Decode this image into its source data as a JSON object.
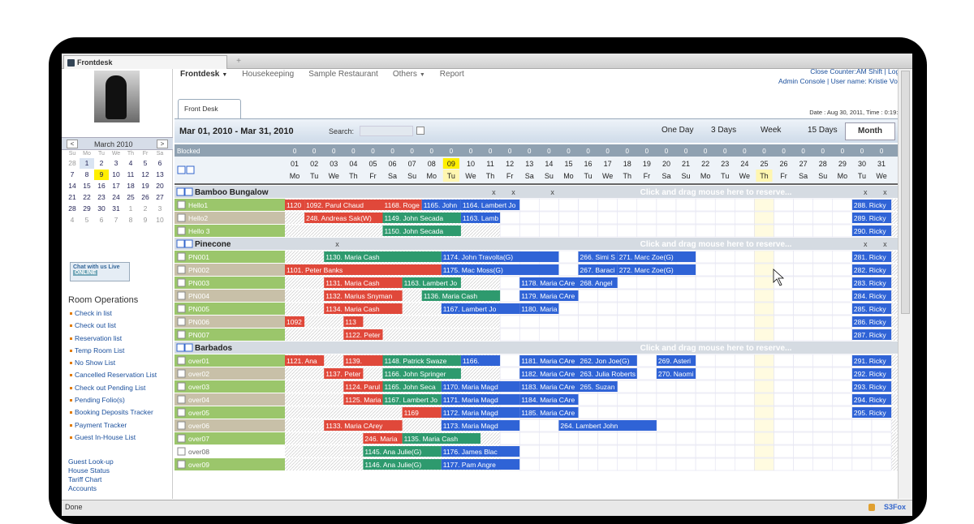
{
  "window": {
    "tab_title": "Frontdesk",
    "status": "Done",
    "status_right": "S3Fox"
  },
  "topnav": {
    "items": [
      "Frontdesk",
      "Housekeeping",
      "Sample Restaurant",
      "Others",
      "Report"
    ]
  },
  "topright": {
    "line1": "Close Counter:AM Shift | Logout",
    "line2": "Admin Console | User name: Kristie Vogue"
  },
  "front_tab": "Front Desk",
  "date_bar": "Date : Aug 30, 2011,   Time : 0:19:Hrs",
  "mini_calendar": {
    "month": "March 2010",
    "prev": "<",
    "next": ">",
    "weekdays": [
      "Su",
      "Mo",
      "Tu",
      "We",
      "Th",
      "Fr",
      "Sa"
    ],
    "weeks": [
      [
        "28",
        "1",
        "2",
        "3",
        "4",
        "5",
        "6"
      ],
      [
        "7",
        "8",
        "9",
        "10",
        "11",
        "12",
        "13"
      ],
      [
        "14",
        "15",
        "16",
        "17",
        "18",
        "19",
        "20"
      ],
      [
        "21",
        "22",
        "23",
        "24",
        "25",
        "26",
        "27"
      ],
      [
        "28",
        "29",
        "30",
        "31",
        "1",
        "2",
        "3"
      ],
      [
        "4",
        "5",
        "6",
        "7",
        "8",
        "9",
        "10"
      ]
    ],
    "outside": [
      [
        0,
        0
      ],
      [
        4,
        4
      ],
      [
        4,
        5
      ],
      [
        4,
        6
      ],
      [
        5,
        0
      ],
      [
        5,
        1
      ],
      [
        5,
        2
      ],
      [
        5,
        3
      ],
      [
        5,
        4
      ],
      [
        5,
        5
      ],
      [
        5,
        6
      ]
    ],
    "today": [
      1,
      2
    ],
    "selected": [
      0,
      1
    ]
  },
  "chat": {
    "line1": "Chat with us Live",
    "line2": "ONLINE"
  },
  "room_ops": {
    "heading": "Room Operations",
    "items": [
      "Check in list",
      "Check out list",
      "Reservation list",
      "Temp Room List",
      "No Show List",
      "Cancelled Reservation List",
      "Check out Pending List",
      "Pending Folio(s)",
      "Booking Deposits Tracker",
      "Payment Tracker",
      "Guest In-House List"
    ]
  },
  "extra_links": [
    "Guest Look-up",
    "House Status",
    "Tariff Chart",
    "Accounts"
  ],
  "header": {
    "range": "Mar 01, 2010 - Mar 31, 2010",
    "search_label": "Search:",
    "views": [
      "One Day",
      "3 Days",
      "Week",
      "15 Days",
      "Month"
    ],
    "active_view": "Month"
  },
  "calendar": {
    "blocked_label": "Blocked",
    "blocked_value": "0",
    "highlight_day": 8,
    "yellow_cols": [
      8,
      24
    ],
    "days": [
      "01",
      "02",
      "03",
      "04",
      "05",
      "06",
      "07",
      "08",
      "09",
      "10",
      "11",
      "12",
      "13",
      "14",
      "15",
      "16",
      "17",
      "18",
      "19",
      "20",
      "21",
      "22",
      "23",
      "24",
      "25",
      "26",
      "27",
      "28",
      "29",
      "30",
      "31"
    ],
    "dows": [
      "Mo",
      "Tu",
      "We",
      "Th",
      "Fr",
      "Sa",
      "Su",
      "Mo",
      "Tu",
      "We",
      "Th",
      "Fr",
      "Sa",
      "Su",
      "Mo",
      "Tu",
      "We",
      "Th",
      "Fr",
      "Sa",
      "Su",
      "Mo",
      "Tu",
      "We",
      "Th",
      "Fr",
      "Sa",
      "Su",
      "Mo",
      "Tu",
      "We"
    ],
    "drag_hint": "Click and drag mouse here to reserve...",
    "groups": [
      {
        "name": "Bamboo Bungalow",
        "x_marks": [
          11,
          12,
          14,
          30,
          31
        ],
        "rooms": [
          {
            "name": "Hello1",
            "color": "#9bc66b",
            "bookings": [
              {
                "s": 0,
                "e": 1,
                "label": "1120",
                "c": "r"
              },
              {
                "s": 1,
                "e": 5,
                "label": "1092. Parul Chaud",
                "c": "r"
              },
              {
                "s": 5,
                "e": 7,
                "label": "1168. Roge",
                "c": "r"
              },
              {
                "s": 7,
                "e": 9,
                "label": "1165. John",
                "c": "b"
              },
              {
                "s": 9,
                "e": 12,
                "label": "1164. Lambert Jo",
                "c": "b"
              },
              {
                "s": 29,
                "e": 31,
                "label": "288. Ricky",
                "c": "b"
              }
            ]
          },
          {
            "name": "Hello2",
            "color": "#c8c0a8",
            "bookings": [
              {
                "s": 1,
                "e": 5,
                "label": "248. Andreas Sak(W)",
                "c": "r"
              },
              {
                "s": 5,
                "e": 9,
                "label": "1149. John Secada",
                "c": "g"
              },
              {
                "s": 9,
                "e": 11,
                "label": "1163. Lamb",
                "c": "b"
              },
              {
                "s": 29,
                "e": 31,
                "label": "289. Ricky",
                "c": "b"
              }
            ]
          },
          {
            "name": "Hello 3",
            "color": "#9bc66b",
            "bookings": [
              {
                "s": 5,
                "e": 9,
                "label": "1150. John Secada",
                "c": "g"
              },
              {
                "s": 29,
                "e": 31,
                "label": "290. Ricky",
                "c": "b"
              }
            ]
          }
        ]
      },
      {
        "name": "Pinecone",
        "x_marks": [
          3,
          30,
          31
        ],
        "rooms": [
          {
            "name": "PN001",
            "color": "#9bc66b",
            "bookings": [
              {
                "s": 2,
                "e": 8,
                "label": "1130. Maria Cash",
                "c": "g"
              },
              {
                "s": 8,
                "e": 14,
                "label": "1174. John Travolta(G)",
                "c": "b"
              },
              {
                "s": 15,
                "e": 17,
                "label": "266. Simi S",
                "c": "b"
              },
              {
                "s": 17,
                "e": 21,
                "label": "271. Marc Zoe(G)",
                "c": "b"
              },
              {
                "s": 29,
                "e": 31,
                "label": "281. Ricky",
                "c": "b"
              }
            ]
          },
          {
            "name": "PN002",
            "color": "#c8c0a8",
            "bookings": [
              {
                "s": 0,
                "e": 8,
                "label": "1101. Peter Banks",
                "c": "r"
              },
              {
                "s": 8,
                "e": 14,
                "label": "1175. Mac Moss(G)",
                "c": "b"
              },
              {
                "s": 15,
                "e": 17,
                "label": "267. Baraci",
                "c": "b"
              },
              {
                "s": 17,
                "e": 21,
                "label": "272. Marc Zoe(G)",
                "c": "b"
              },
              {
                "s": 29,
                "e": 31,
                "label": "282. Ricky",
                "c": "b"
              }
            ]
          },
          {
            "name": "PN003",
            "color": "#9bc66b",
            "bookings": [
              {
                "s": 2,
                "e": 6,
                "label": "1131. Maria Cash",
                "c": "r"
              },
              {
                "s": 6,
                "e": 9,
                "label": "1163. Lambert Jo",
                "c": "g"
              },
              {
                "s": 12,
                "e": 15,
                "label": "1178. Maria CAre",
                "c": "b"
              },
              {
                "s": 15,
                "e": 17,
                "label": "268. Angel",
                "c": "b"
              },
              {
                "s": 29,
                "e": 31,
                "label": "283. Ricky",
                "c": "b"
              }
            ]
          },
          {
            "name": "PN004",
            "color": "#c8c0a8",
            "bookings": [
              {
                "s": 2,
                "e": 6,
                "label": "1132. Marius Snyman",
                "c": "r"
              },
              {
                "s": 7,
                "e": 11,
                "label": "1136. Maria Cash",
                "c": "g"
              },
              {
                "s": 12,
                "e": 15,
                "label": "1179. Maria CAre",
                "c": "b"
              },
              {
                "s": 29,
                "e": 31,
                "label": "284. Ricky",
                "c": "b"
              }
            ]
          },
          {
            "name": "PN005",
            "color": "#9bc66b",
            "bookings": [
              {
                "s": 2,
                "e": 6,
                "label": "1134. Maria Cash",
                "c": "r"
              },
              {
                "s": 8,
                "e": 12,
                "label": "1167. Lambert Jo",
                "c": "b"
              },
              {
                "s": 12,
                "e": 14,
                "label": "1180. Maria",
                "c": "b"
              },
              {
                "s": 29,
                "e": 31,
                "label": "285. Ricky",
                "c": "b"
              }
            ]
          },
          {
            "name": "PN006",
            "color": "#c8c0a8",
            "bookings": [
              {
                "s": 0,
                "e": 1,
                "label": "1092",
                "c": "r"
              },
              {
                "s": 3,
                "e": 4,
                "label": "113",
                "c": "r"
              },
              {
                "s": 29,
                "e": 31,
                "label": "286. Ricky",
                "c": "b"
              }
            ]
          },
          {
            "name": "PN007",
            "color": "#9bc66b",
            "bookings": [
              {
                "s": 3,
                "e": 5,
                "label": "1122. Peter",
                "c": "r"
              },
              {
                "s": 29,
                "e": 31,
                "label": "287. Ricky",
                "c": "b"
              }
            ]
          }
        ]
      },
      {
        "name": "Barbados",
        "x_marks": [],
        "rooms": [
          {
            "name": "over01",
            "color": "#9bc66b",
            "bookings": [
              {
                "s": 0,
                "e": 2,
                "label": "1121. Ana",
                "c": "r"
              },
              {
                "s": 3,
                "e": 5,
                "label": "1139.",
                "c": "r"
              },
              {
                "s": 5,
                "e": 9,
                "label": "1148. Patrick Swaze",
                "c": "g"
              },
              {
                "s": 9,
                "e": 11,
                "label": "1166.",
                "c": "b"
              },
              {
                "s": 12,
                "e": 15,
                "label": "1181. Maria CAre",
                "c": "b"
              },
              {
                "s": 15,
                "e": 18,
                "label": "262. Jon Joe(G)",
                "c": "b"
              },
              {
                "s": 19,
                "e": 21,
                "label": "269. Asteri",
                "c": "b"
              },
              {
                "s": 29,
                "e": 31,
                "label": "291. Ricky",
                "c": "b"
              }
            ]
          },
          {
            "name": "over02",
            "color": "#c8c0a8",
            "bookings": [
              {
                "s": 2,
                "e": 4,
                "label": "1137. Peter",
                "c": "r"
              },
              {
                "s": 5,
                "e": 9,
                "label": "1166. John Springer",
                "c": "g"
              },
              {
                "s": 12,
                "e": 15,
                "label": "1182. Maria CAre",
                "c": "b"
              },
              {
                "s": 15,
                "e": 18,
                "label": "263. Julia Roberts",
                "c": "b"
              },
              {
                "s": 19,
                "e": 21,
                "label": "270. Naomi",
                "c": "b"
              },
              {
                "s": 29,
                "e": 31,
                "label": "292. Ricky",
                "c": "b"
              }
            ]
          },
          {
            "name": "over03",
            "color": "#9bc66b",
            "bookings": [
              {
                "s": 3,
                "e": 5,
                "label": "1124. Parul",
                "c": "r"
              },
              {
                "s": 5,
                "e": 8,
                "label": "1165. John Seca",
                "c": "g"
              },
              {
                "s": 8,
                "e": 12,
                "label": "1170. Maria Magd",
                "c": "b"
              },
              {
                "s": 12,
                "e": 15,
                "label": "1183. Maria CAre",
                "c": "b"
              },
              {
                "s": 15,
                "e": 17,
                "label": "265. Suzan",
                "c": "b"
              },
              {
                "s": 29,
                "e": 31,
                "label": "293. Ricky",
                "c": "b"
              }
            ]
          },
          {
            "name": "over04",
            "color": "#c8c0a8",
            "bookings": [
              {
                "s": 3,
                "e": 5,
                "label": "1125. Maria",
                "c": "r"
              },
              {
                "s": 5,
                "e": 8,
                "label": "1167. Lambert Jo",
                "c": "g"
              },
              {
                "s": 8,
                "e": 12,
                "label": "1171. Maria Magd",
                "c": "b"
              },
              {
                "s": 12,
                "e": 15,
                "label": "1184. Maria CAre",
                "c": "b"
              },
              {
                "s": 29,
                "e": 31,
                "label": "294. Ricky",
                "c": "b"
              }
            ]
          },
          {
            "name": "over05",
            "color": "#9bc66b",
            "bookings": [
              {
                "s": 6,
                "e": 8,
                "label": "1169",
                "c": "r"
              },
              {
                "s": 8,
                "e": 12,
                "label": "1172. Maria Magd",
                "c": "b"
              },
              {
                "s": 12,
                "e": 15,
                "label": "1185. Maria CAre",
                "c": "b"
              },
              {
                "s": 29,
                "e": 31,
                "label": "295. Ricky",
                "c": "b"
              }
            ]
          },
          {
            "name": "over06",
            "color": "#c8c0a8",
            "bookings": [
              {
                "s": 2,
                "e": 6,
                "label": "1133. Maria CArey",
                "c": "r"
              },
              {
                "s": 8,
                "e": 12,
                "label": "1173. Maria Magd",
                "c": "b"
              },
              {
                "s": 14,
                "e": 19,
                "label": "264. Lambert John",
                "c": "b"
              }
            ]
          },
          {
            "name": "over07",
            "color": "#9bc66b",
            "bookings": [
              {
                "s": 4,
                "e": 6,
                "label": "246. Maria",
                "c": "r"
              },
              {
                "s": 6,
                "e": 10,
                "label": "1135. Maria Cash",
                "c": "g"
              }
            ]
          },
          {
            "name": "over08",
            "color": "#ffffff",
            "bookings": [
              {
                "s": 4,
                "e": 8,
                "label": "1145. Ana Julie(G)",
                "c": "g"
              },
              {
                "s": 8,
                "e": 12,
                "label": "1176. James Blac",
                "c": "b"
              }
            ]
          },
          {
            "name": "over09",
            "color": "#9bc66b",
            "bookings": [
              {
                "s": 4,
                "e": 8,
                "label": "1146. Ana Julie(G)",
                "c": "g"
              },
              {
                "s": 8,
                "e": 12,
                "label": "1177. Pam Angre",
                "c": "b"
              }
            ]
          }
        ]
      }
    ]
  },
  "colors": {
    "red": "#e0483a",
    "green": "#2e9a6e",
    "blue": "#2f63d6"
  }
}
